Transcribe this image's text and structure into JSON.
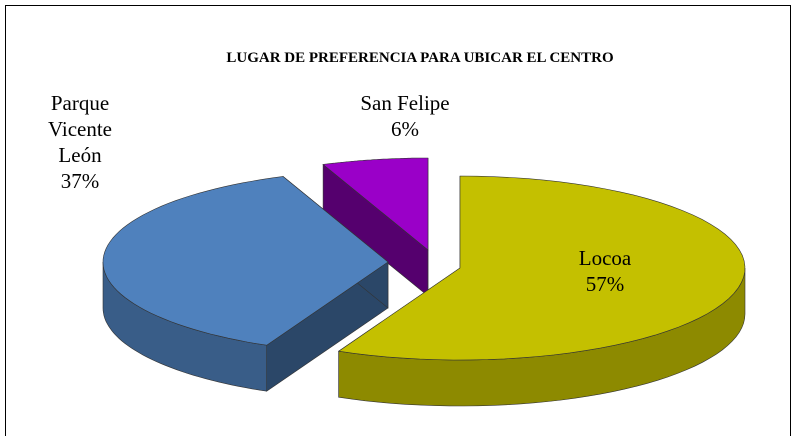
{
  "chart_data": {
    "type": "pie3d",
    "title": "LUGAR DE PREFERENCIA PARA UBICAR EL CENTRO",
    "categories": [
      "Locoa",
      "Parque Vicente León",
      "San Felipe"
    ],
    "values": [
      57,
      37,
      6
    ],
    "value_labels": [
      "57%",
      "37%",
      "6%"
    ],
    "colors": [
      "#c4c000",
      "#4f81bd",
      "#9a00c8"
    ]
  }
}
